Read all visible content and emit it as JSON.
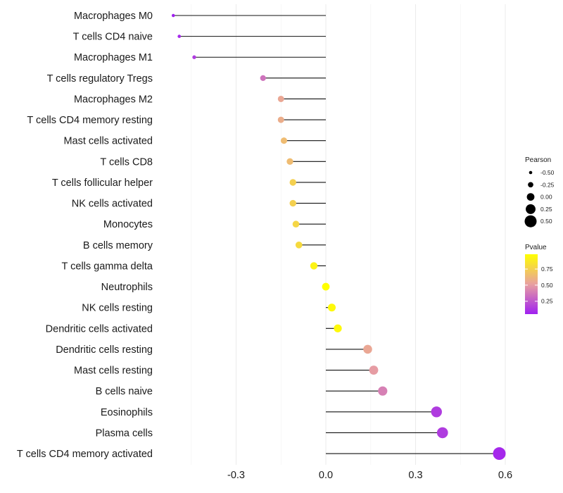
{
  "chart_data": {
    "type": "lollipop",
    "title": "",
    "xlabel": "",
    "ylabel": "",
    "xlim": [
      -0.52,
      0.61
    ],
    "x_ticks": [
      -0.3,
      0.0,
      0.3,
      0.6
    ],
    "x_tick_labels": [
      "-0.3",
      "0.0",
      "0.3",
      "0.6"
    ],
    "grid": "vertical",
    "categories": [
      "Macrophages M0",
      "T cells CD4 naive",
      "Macrophages M1",
      "T cells regulatory  Tregs",
      "Macrophages M2",
      "T cells CD4 memory resting",
      "Mast cells activated",
      "T cells CD8",
      "T cells follicular helper",
      "NK cells activated",
      "Monocytes",
      "B cells memory",
      "T cells gamma delta",
      "Neutrophils",
      "NK cells resting",
      "Dendritic cells activated",
      "Dendritic cells resting",
      "Mast cells resting",
      "B cells naive",
      "Eosinophils",
      "Plasma cells",
      "T cells CD4 memory activated"
    ],
    "pearson": [
      -0.51,
      -0.49,
      -0.44,
      -0.21,
      -0.15,
      -0.15,
      -0.14,
      -0.12,
      -0.11,
      -0.11,
      -0.1,
      -0.09,
      -0.04,
      0.0,
      0.02,
      0.04,
      0.14,
      0.16,
      0.19,
      0.37,
      0.39,
      0.58
    ],
    "pvalue": [
      0.05,
      0.08,
      0.15,
      0.35,
      0.55,
      0.58,
      0.65,
      0.65,
      0.75,
      0.75,
      0.78,
      0.8,
      0.92,
      0.98,
      0.95,
      0.95,
      0.55,
      0.5,
      0.4,
      0.15,
      0.15,
      0.08
    ],
    "size_legend": {
      "title": "Pearson",
      "values": [
        -0.5,
        -0.25,
        0.0,
        0.25,
        0.5
      ],
      "labels": [
        "-0.50",
        "-0.25",
        "0.00",
        "0.25",
        "0.50"
      ]
    },
    "color_legend": {
      "title": "Pvalue",
      "ticks": [
        0.25,
        0.5,
        0.75
      ],
      "labels": [
        "0.25",
        "0.50",
        "0.75"
      ],
      "range": [
        0.05,
        0.98
      ],
      "colors": {
        "low": "#a020f0",
        "mid": "#e8a0a0",
        "high": "#ffff00"
      }
    },
    "legend_position": "right"
  }
}
